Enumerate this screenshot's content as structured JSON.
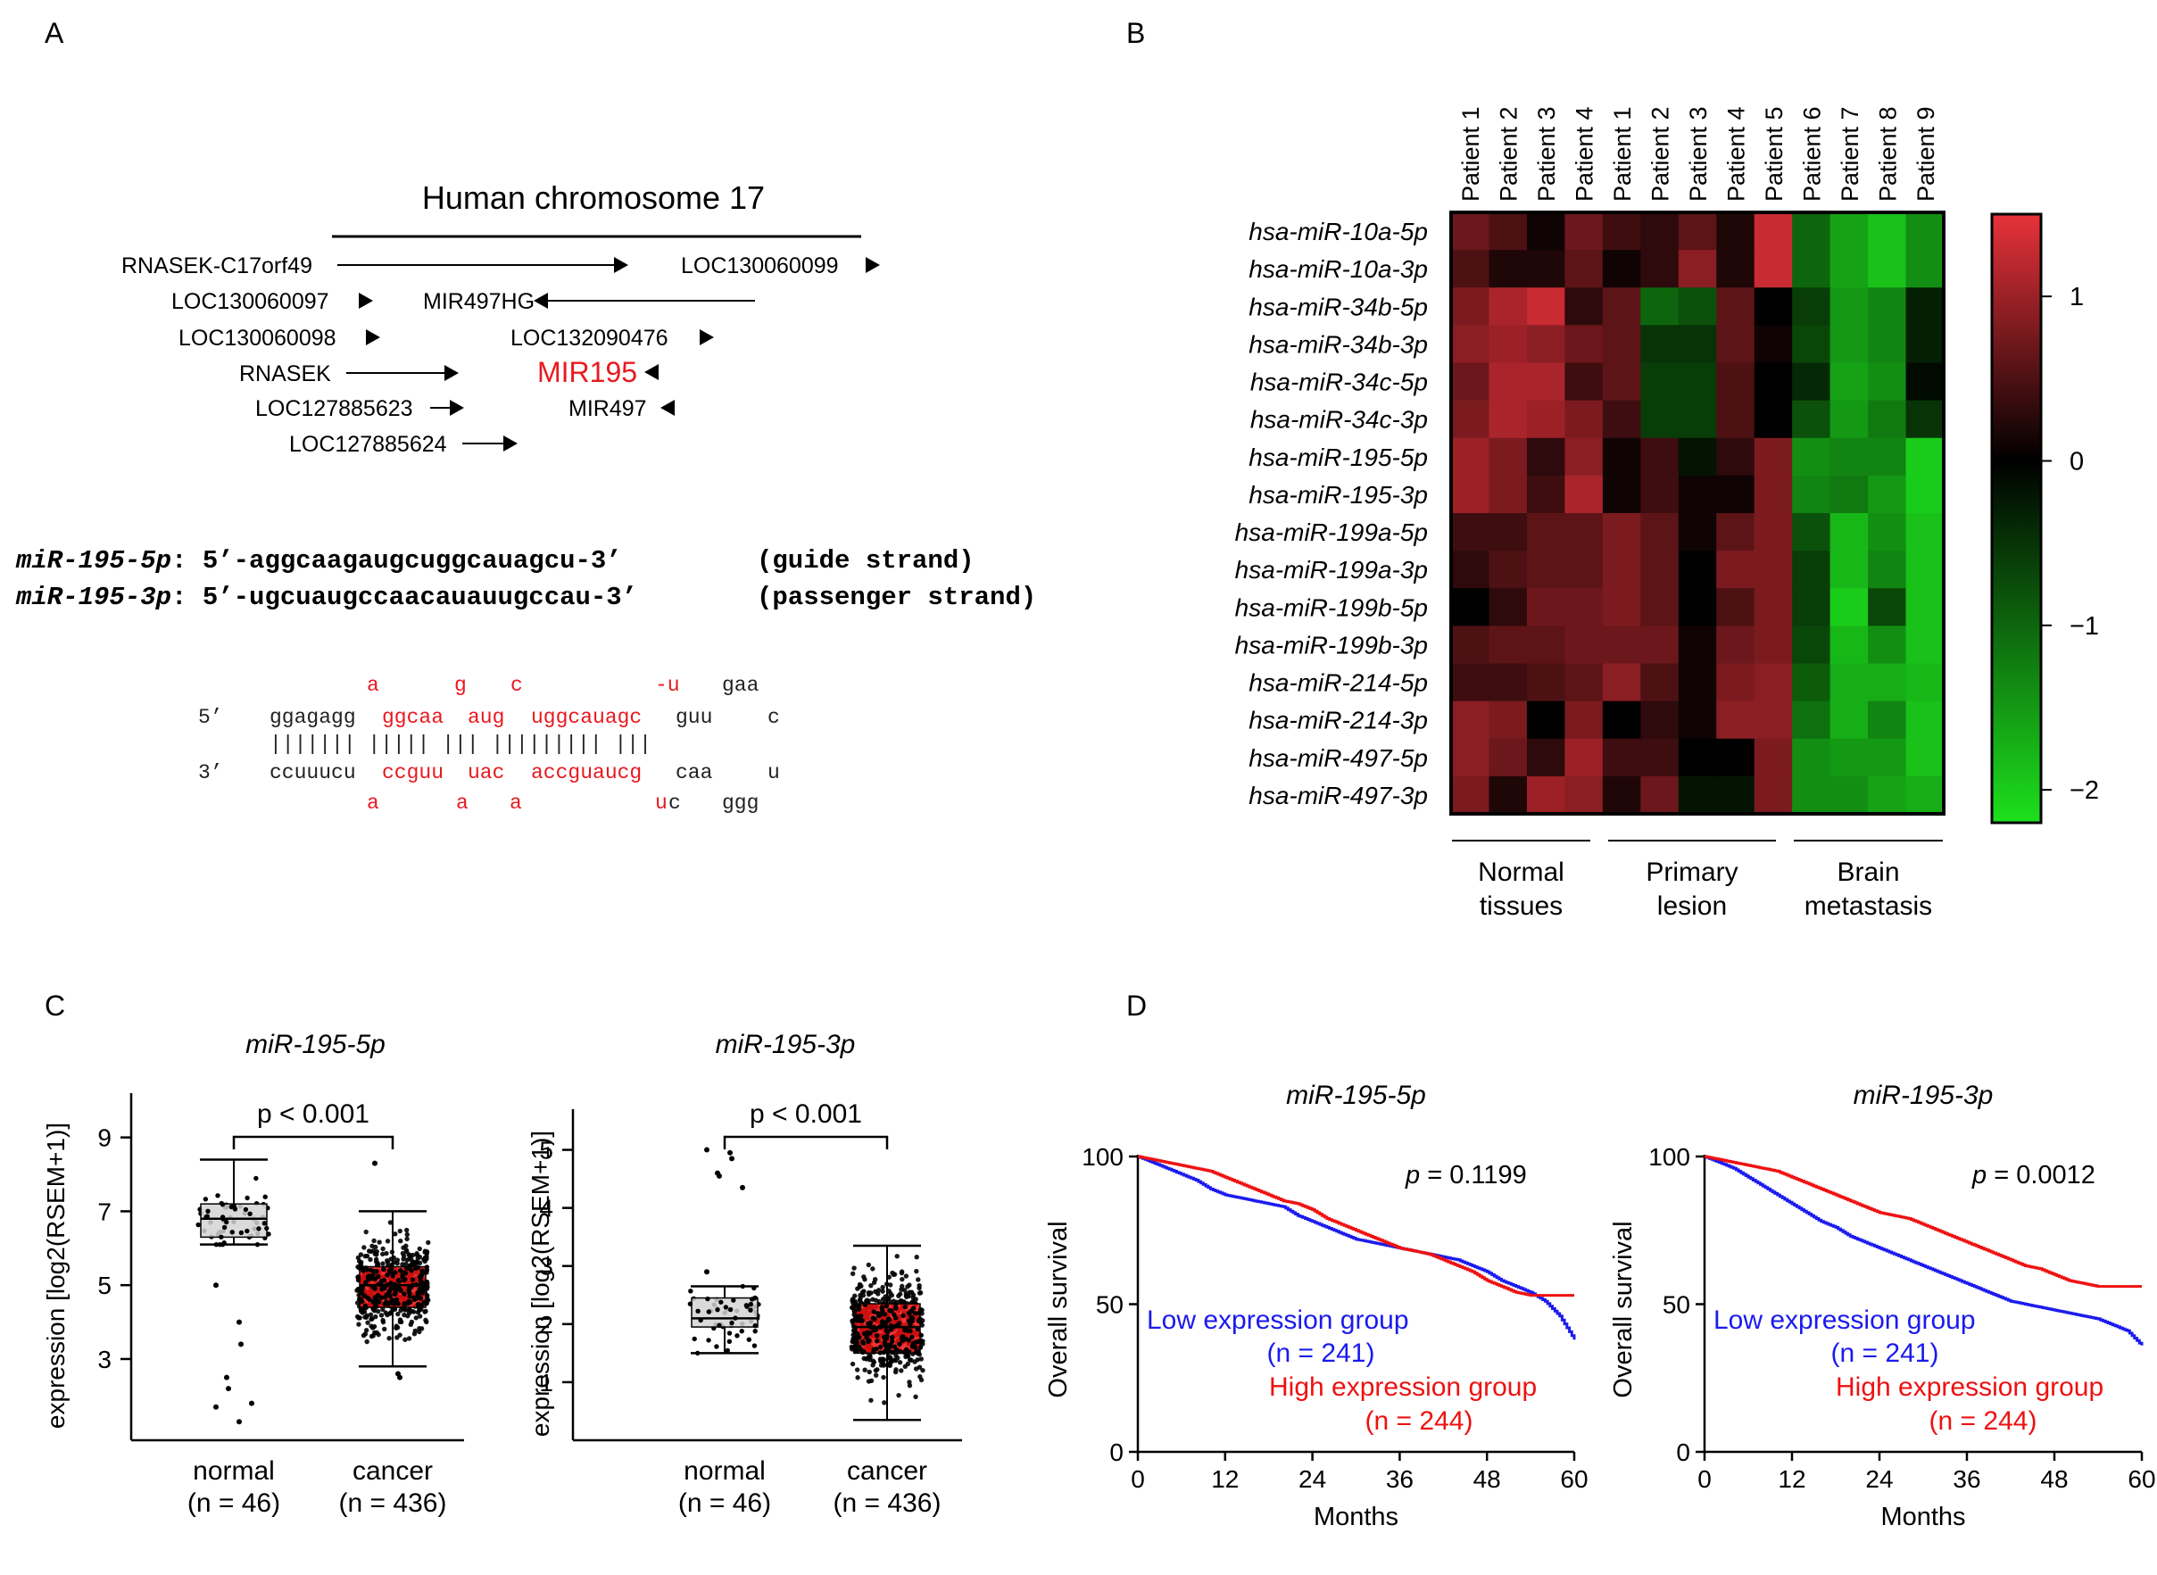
{
  "panel_labels": [
    "A",
    "B",
    "C",
    "D"
  ],
  "panel_a": {
    "title": "Human chromosome 17",
    "genes": [
      {
        "name": "RNASEK-C17orf49",
        "dir": "right"
      },
      {
        "name": "LOC130060099",
        "dir": "right"
      },
      {
        "name": "LOC130060097",
        "dir": "right"
      },
      {
        "name": "MIR497HG",
        "dir": "left"
      },
      {
        "name": "LOC130060098",
        "dir": "right"
      },
      {
        "name": "LOC132090476",
        "dir": "right"
      },
      {
        "name": "RNASEK",
        "dir": "right"
      },
      {
        "name": "MIR195",
        "dir": "left",
        "color": "#e8191f"
      },
      {
        "name": "LOC127885623",
        "dir": "right"
      },
      {
        "name": "MIR497",
        "dir": "left"
      },
      {
        "name": "LOC127885624",
        "dir": "right"
      }
    ],
    "sequences": [
      {
        "name": "miR-195-5p",
        "seq": ": 5’-aggcaagaugcuggcauagcu-3’",
        "note": "(guide strand)"
      },
      {
        "name": "miR-195-3p",
        "seq": ": 5’-ugcuaugccaacauauugccau-3’",
        "note": "(passenger strand)"
      }
    ],
    "hairpin": {
      "label_5": "5’",
      "label_3": "3’",
      "top_bulge": [
        "a",
        "g",
        "c",
        "-u",
        "gaa"
      ],
      "top_strand": [
        "ggagagg",
        "ggcaa",
        "aug",
        "uggcauagc",
        "guu",
        "c"
      ],
      "pairs": "|||||||  |||||  |||  |||||||||   |||",
      "bottom_strand": [
        "ccuuucu",
        "ccguu",
        "uac",
        "accguaucg",
        "caa",
        "u"
      ],
      "bottom_bulge": [
        "a",
        "a",
        "a",
        "u",
        "c",
        "ggg"
      ],
      "highlight_color": "#e8191f"
    }
  },
  "panel_b": {
    "chart_data": {
      "type": "heatmap",
      "columns": [
        "Patient 1",
        "Patient 2",
        "Patient 3",
        "Patient 4",
        "Patient 1",
        "Patient 2",
        "Patient 3",
        "Patient 4",
        "Patient 5",
        "Patient 6",
        "Patient 7",
        "Patient 8",
        "Patient 9"
      ],
      "rows": [
        "hsa-miR-10a-5p",
        "hsa-miR-10a-3p",
        "hsa-miR-34b-5p",
        "hsa-miR-34b-3p",
        "hsa-miR-34c-5p",
        "hsa-miR-34c-3p",
        "hsa-miR-195-5p",
        "hsa-miR-195-3p",
        "hsa-miR-199a-5p",
        "hsa-miR-199a-3p",
        "hsa-miR-199b-5p",
        "hsa-miR-199b-3p",
        "hsa-miR-214-5p",
        "hsa-miR-214-3p",
        "hsa-miR-497-5p",
        "hsa-miR-497-3p"
      ],
      "values": [
        [
          0.7,
          0.5,
          0.1,
          0.7,
          0.4,
          0.3,
          0.6,
          0.2,
          1.3,
          -1.0,
          -1.6,
          -1.9,
          -1.4
        ],
        [
          0.5,
          0.2,
          0.2,
          0.6,
          0.1,
          0.3,
          0.9,
          0.2,
          1.3,
          -1.0,
          -1.6,
          -1.9,
          -1.4
        ],
        [
          0.8,
          1.1,
          1.3,
          0.3,
          0.6,
          -1.0,
          -0.8,
          0.6,
          0.0,
          -0.6,
          -1.5,
          -1.3,
          -0.3
        ],
        [
          0.9,
          1.0,
          0.9,
          0.7,
          0.6,
          -0.5,
          -0.5,
          0.6,
          0.1,
          -0.7,
          -1.5,
          -1.3,
          -0.3
        ],
        [
          0.7,
          1.1,
          1.1,
          0.4,
          0.6,
          -0.6,
          -0.6,
          0.5,
          0.0,
          -0.4,
          -1.6,
          -1.4,
          -0.1
        ],
        [
          0.8,
          1.1,
          1.0,
          0.8,
          0.4,
          -0.6,
          -0.6,
          0.5,
          0.0,
          -0.8,
          -1.5,
          -1.2,
          -0.5
        ],
        [
          1.0,
          0.8,
          0.3,
          0.9,
          0.1,
          0.4,
          -0.2,
          0.3,
          0.8,
          -1.4,
          -1.3,
          -1.3,
          -2.0
        ],
        [
          1.0,
          0.8,
          0.4,
          1.1,
          0.1,
          0.4,
          0.1,
          0.1,
          0.8,
          -1.3,
          -1.2,
          -1.5,
          -2.0
        ],
        [
          0.4,
          0.4,
          0.6,
          0.6,
          0.8,
          0.6,
          0.1,
          0.6,
          0.8,
          -0.8,
          -1.8,
          -1.4,
          -1.9
        ],
        [
          0.3,
          0.5,
          0.6,
          0.6,
          0.8,
          0.6,
          0.0,
          0.8,
          0.8,
          -0.6,
          -1.8,
          -1.3,
          -1.9
        ],
        [
          0.0,
          0.3,
          0.7,
          0.7,
          0.8,
          0.6,
          0.0,
          0.5,
          0.8,
          -0.6,
          -2.0,
          -0.7,
          -1.9
        ],
        [
          0.5,
          0.6,
          0.6,
          0.7,
          0.7,
          0.7,
          0.1,
          0.7,
          0.8,
          -0.7,
          -1.8,
          -1.4,
          -1.9
        ],
        [
          0.4,
          0.4,
          0.5,
          0.6,
          0.9,
          0.5,
          0.1,
          0.8,
          0.9,
          -0.9,
          -1.7,
          -1.7,
          -1.8
        ],
        [
          0.9,
          0.8,
          0.0,
          0.8,
          0.0,
          0.3,
          0.1,
          0.9,
          0.9,
          -1.1,
          -1.7,
          -1.3,
          -1.9
        ],
        [
          0.9,
          0.7,
          0.3,
          1.0,
          0.4,
          0.4,
          0.0,
          0.0,
          0.8,
          -1.4,
          -1.5,
          -1.5,
          -1.9
        ],
        [
          0.8,
          0.2,
          1.0,
          0.9,
          0.2,
          0.7,
          -0.2,
          -0.2,
          0.8,
          -1.4,
          -1.4,
          -1.6,
          -1.7
        ]
      ],
      "scale_min": -2.2,
      "scale_max": 1.5,
      "colorbar_ticks": [
        1,
        0,
        -1,
        -2
      ],
      "colorbar_tick_labels": [
        "1",
        "0",
        "−1",
        "−2"
      ],
      "colors": {
        "high": "#e8323a",
        "mid": "#000000",
        "low": "#1de01d"
      },
      "groups": [
        {
          "label": [
            "Normal",
            "tissues"
          ],
          "start": 0,
          "end": 3
        },
        {
          "label": [
            "Primary",
            "lesion"
          ],
          "start": 4,
          "end": 8
        },
        {
          "label": [
            "Brain",
            "metastasis"
          ],
          "start": 9,
          "end": 12
        }
      ]
    }
  },
  "panel_c": {
    "chart_data": [
      {
        "type": "box",
        "title": "miR-195-5p",
        "ylabel": "expression [log2(RSEM+1)]",
        "ylim": [
          0.8,
          10.2
        ],
        "yticks": [
          3,
          5,
          7,
          9
        ],
        "pvalue": "p < 0.001",
        "groups": [
          {
            "name": "normal",
            "n_label": "(n = 46)",
            "q1": 6.3,
            "median": 6.8,
            "q3": 7.2,
            "whisker_low": 6.1,
            "whisker_high": 8.4,
            "outliers": [
              5.0,
              4.0,
              3.4,
              2.5,
              2.2,
              1.8,
              1.7,
              1.3
            ],
            "color": "#d3d3d3"
          },
          {
            "name": "cancer",
            "n_label": "(n = 436)",
            "q1": 4.4,
            "median": 5.0,
            "q3": 5.5,
            "whisker_low": 2.8,
            "whisker_high": 7.0,
            "outliers": [
              8.3,
              2.6,
              2.5
            ],
            "color": "#ee1111"
          }
        ]
      },
      {
        "type": "box",
        "title": "miR-195-3p",
        "ylabel": "expression [log2(RSEM+1)]",
        "ylim": [
          0.0,
          5.7
        ],
        "yticks": [
          1,
          2,
          3,
          4,
          5
        ],
        "pvalue": "p < 0.001",
        "groups": [
          {
            "name": "normal",
            "n_label": "(n = 46)",
            "q1": 1.95,
            "median": 2.1,
            "q3": 2.45,
            "whisker_low": 1.5,
            "whisker_high": 2.65,
            "outliers": [
              5.0,
              4.95,
              4.85,
              4.6,
              4.55,
              4.35,
              2.9
            ],
            "color": "#d3d3d3"
          },
          {
            "name": "cancer",
            "n_label": "(n = 436)",
            "q1": 1.5,
            "median": 1.95,
            "q3": 2.35,
            "whisker_low": 0.35,
            "whisker_high": 3.35,
            "outliers": [],
            "color": "#ee1111"
          }
        ]
      }
    ]
  },
  "panel_d": {
    "chart_data": [
      {
        "type": "line",
        "title": "miR-195-5p",
        "xlabel": "Months",
        "ylabel": "Overall survival",
        "xlim": [
          0,
          60
        ],
        "ylim": [
          0,
          100
        ],
        "xticks": [
          0,
          12,
          24,
          36,
          48,
          60
        ],
        "yticks": [
          0,
          50,
          100
        ],
        "pvalue": "p = 0.1199",
        "series": [
          {
            "name": "Low expression group",
            "n_label": "(n = 241)",
            "color": "#1a1aee",
            "x": [
              0,
              2,
              4,
              6,
              8,
              10,
              12,
              14,
              16,
              18,
              20,
              22,
              24,
              26,
              28,
              30,
              32,
              34,
              36,
              38,
              40,
              42,
              44,
              46,
              48,
              50,
              52,
              54,
              56,
              58,
              60
            ],
            "y": [
              100,
              98,
              96,
              94,
              92,
              89,
              87,
              86,
              85,
              84,
              83,
              80,
              78,
              76,
              74,
              72,
              71,
              70,
              69,
              68,
              67,
              66,
              65,
              63,
              61,
              58,
              56,
              54,
              51,
              46,
              38
            ]
          },
          {
            "name": "High expression group",
            "n_label": "(n = 244)",
            "color": "#ee1111",
            "x": [
              0,
              2,
              4,
              6,
              8,
              10,
              12,
              14,
              16,
              18,
              20,
              22,
              24,
              26,
              28,
              30,
              32,
              34,
              36,
              38,
              40,
              42,
              44,
              46,
              48,
              50,
              52,
              54,
              56,
              58,
              60
            ],
            "y": [
              100,
              99,
              98,
              97,
              96,
              95,
              93,
              91,
              89,
              87,
              85,
              84,
              82,
              79,
              77,
              75,
              73,
              71,
              69,
              68,
              67,
              65,
              63,
              61,
              58,
              56,
              54,
              53,
              53,
              53,
              53
            ]
          }
        ]
      },
      {
        "type": "line",
        "title": "miR-195-3p",
        "xlabel": "Months",
        "ylabel": "Overall survival",
        "xlim": [
          0,
          60
        ],
        "ylim": [
          0,
          100
        ],
        "xticks": [
          0,
          12,
          24,
          36,
          48,
          60
        ],
        "yticks": [
          0,
          50,
          100
        ],
        "pvalue": "p = 0.0012",
        "series": [
          {
            "name": "Low expression group",
            "n_label": "(n = 241)",
            "color": "#1a1aee",
            "x": [
              0,
              2,
              4,
              6,
              8,
              10,
              12,
              14,
              16,
              18,
              20,
              22,
              24,
              26,
              28,
              30,
              32,
              34,
              36,
              38,
              40,
              42,
              44,
              46,
              48,
              50,
              52,
              54,
              56,
              58,
              60
            ],
            "y": [
              100,
              98,
              96,
              93,
              90,
              87,
              84,
              81,
              78,
              76,
              73,
              71,
              69,
              67,
              65,
              63,
              61,
              59,
              57,
              55,
              53,
              51,
              50,
              49,
              48,
              47,
              46,
              45,
              43,
              41,
              36
            ]
          },
          {
            "name": "High expression group",
            "n_label": "(n = 244)",
            "color": "#ee1111",
            "x": [
              0,
              2,
              4,
              6,
              8,
              10,
              12,
              14,
              16,
              18,
              20,
              22,
              24,
              26,
              28,
              30,
              32,
              34,
              36,
              38,
              40,
              42,
              44,
              46,
              48,
              50,
              52,
              54,
              56,
              58,
              60
            ],
            "y": [
              100,
              99,
              98,
              97,
              96,
              95,
              93,
              91,
              89,
              87,
              85,
              83,
              81,
              80,
              79,
              77,
              75,
              73,
              71,
              69,
              67,
              65,
              63,
              62,
              60,
              58,
              57,
              56,
              56,
              56,
              56
            ]
          }
        ]
      }
    ]
  }
}
